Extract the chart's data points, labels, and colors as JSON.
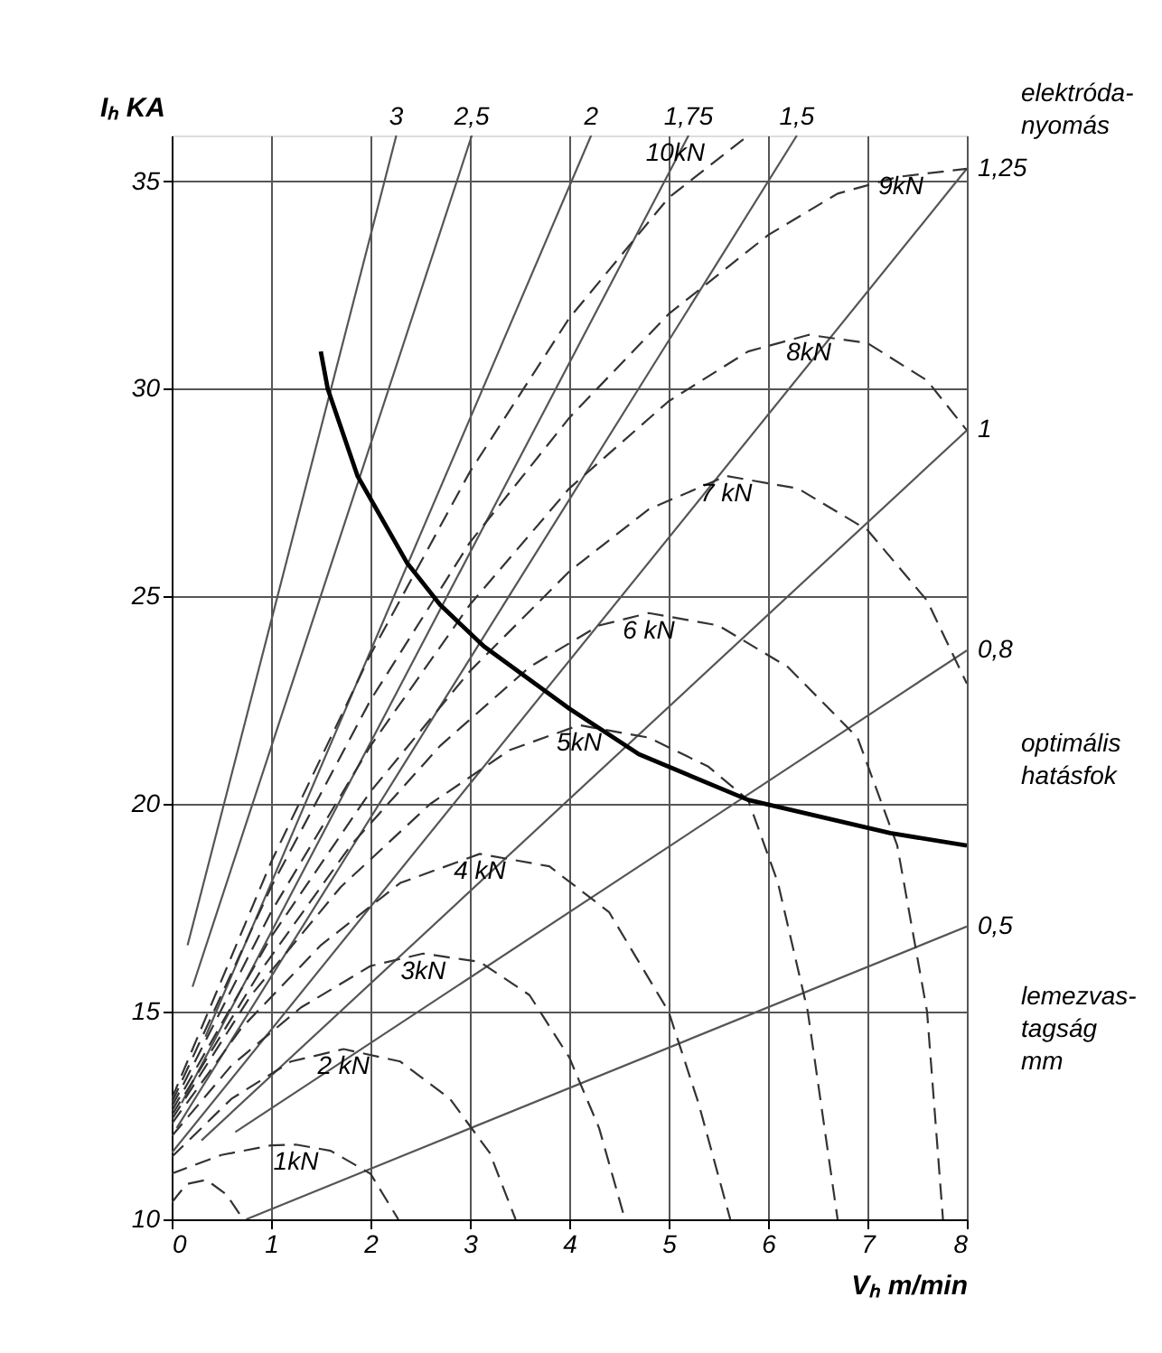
{
  "chart_data": {
    "type": "line",
    "xlabel": "Vₕ m/min",
    "ylabel": "Iₕ KA",
    "xlim": [
      0,
      8
    ],
    "ylim": [
      10,
      36.1
    ],
    "xticks": [
      0,
      1,
      2,
      3,
      4,
      5,
      6,
      7,
      8
    ],
    "yticks": [
      10,
      15,
      20,
      25,
      30,
      35
    ],
    "grid": true,
    "legend": false,
    "marker": "none",
    "annotations": [
      "elektróda-nyomás",
      "optimális hatásfok",
      "lemezvas-tagság mm"
    ],
    "series": [
      {
        "name": "3",
        "color": "#555555",
        "line_style": "solid",
        "x": [
          0.16,
          2.26
        ],
        "values": [
          16.6,
          36.1
        ]
      },
      {
        "name": "2,5",
        "color": "#555555",
        "line_style": "solid",
        "x": [
          0.21,
          3.02
        ],
        "values": [
          15.6,
          36.1
        ]
      },
      {
        "name": "2",
        "color": "#555555",
        "line_style": "solid",
        "x": [
          0.34,
          4.22
        ],
        "values": [
          14.4,
          36.1
        ]
      },
      {
        "name": "1,75",
        "color": "#555555",
        "line_style": "solid",
        "x": [
          0.1,
          5.2
        ],
        "values": [
          12.8,
          36.1
        ]
      },
      {
        "name": "1,5",
        "color": "#555555",
        "line_style": "solid",
        "x": [
          0.05,
          6.29
        ],
        "values": [
          12.2,
          36.1
        ]
      },
      {
        "name": "1,25",
        "color": "#555555",
        "line_style": "solid",
        "x": [
          0,
          8
        ],
        "values": [
          11.6,
          35.3
        ]
      },
      {
        "name": "1",
        "color": "#555555",
        "line_style": "solid",
        "x": [
          0.3,
          8
        ],
        "values": [
          11.9,
          29.0
        ]
      },
      {
        "name": "0,8",
        "color": "#555555",
        "line_style": "solid",
        "x": [
          0.64,
          8
        ],
        "values": [
          12.1,
          23.7
        ]
      },
      {
        "name": "0,5",
        "color": "#555555",
        "line_style": "solid",
        "x": [
          0.75,
          8
        ],
        "values": [
          10,
          17.05
        ]
      },
      {
        "color": "#333333",
        "line_style": "dashed",
        "x": [
          0,
          0.15,
          0.35,
          0.55,
          0.72
        ],
        "values": [
          10.4,
          10.85,
          10.95,
          10.6,
          10
        ]
      },
      {
        "name": "1kN",
        "color": "#333333",
        "line_style": "dashed",
        "x": [
          0,
          0.5,
          1.0,
          1.25,
          1.6,
          2.0,
          2.28
        ],
        "values": [
          11.1,
          11.55,
          11.78,
          11.8,
          11.65,
          11.1,
          10
        ]
      },
      {
        "name": "2 kN",
        "color": "#333333",
        "line_style": "dashed",
        "x": [
          0,
          0.6,
          1.2,
          1.73,
          2.3,
          2.8,
          3.2,
          3.46
        ],
        "values": [
          11.5,
          12.9,
          13.8,
          14.1,
          13.8,
          12.9,
          11.6,
          10
        ]
      },
      {
        "name": "3kN",
        "color": "#333333",
        "line_style": "dashed",
        "x": [
          0,
          0.6,
          1.3,
          2.0,
          2.53,
          3.1,
          3.6,
          4.0,
          4.3,
          4.56
        ],
        "values": [
          12.0,
          13.7,
          15.1,
          16.1,
          16.4,
          16.2,
          15.4,
          13.9,
          12.2,
          10
        ]
      },
      {
        "name": "4 kN",
        "color": "#333333",
        "line_style": "dashed",
        "x": [
          0,
          0.7,
          1.5,
          2.3,
          3.1,
          3.8,
          4.4,
          5.0,
          5.3,
          5.62
        ],
        "values": [
          12.3,
          14.6,
          16.6,
          18.1,
          18.8,
          18.5,
          17.4,
          15.0,
          12.8,
          10
        ]
      },
      {
        "name": "5kN",
        "color": "#333333",
        "line_style": "dashed",
        "x": [
          0,
          0.8,
          1.7,
          2.6,
          3.4,
          4.1,
          4.8,
          5.4,
          5.8,
          6.1,
          6.4,
          6.7
        ],
        "values": [
          12.4,
          15.4,
          18.0,
          20.0,
          21.3,
          21.9,
          21.6,
          20.9,
          20.1,
          18.1,
          15.0,
          10
        ]
      },
      {
        "name": "6 kN",
        "color": "#333333",
        "line_style": "dashed",
        "x": [
          0,
          0.9,
          1.8,
          2.7,
          3.6,
          4.3,
          4.8,
          5.5,
          6.2,
          6.9,
          7.3,
          7.6,
          7.76
        ],
        "values": [
          12.5,
          16.0,
          19.0,
          21.4,
          23.3,
          24.3,
          24.6,
          24.3,
          23.3,
          21.6,
          19.0,
          15.0,
          10
        ]
      },
      {
        "name": "7 kN",
        "color": "#333333",
        "line_style": "dashed",
        "x": [
          0,
          1.0,
          2.0,
          3.0,
          4.0,
          4.8,
          5.58,
          6.3,
          7.0,
          7.6,
          8.0
        ],
        "values": [
          12.6,
          16.8,
          20.3,
          23.2,
          25.6,
          27.1,
          27.9,
          27.6,
          26.6,
          24.9,
          22.9
        ]
      },
      {
        "name": "8kN",
        "color": "#333333",
        "line_style": "dashed",
        "x": [
          0,
          1.0,
          2.0,
          3.0,
          4.0,
          5.0,
          5.8,
          6.41,
          7.0,
          7.6,
          8.0
        ],
        "values": [
          12.7,
          17.4,
          21.4,
          24.8,
          27.6,
          29.7,
          30.9,
          31.3,
          31.1,
          30.2,
          29.0
        ]
      },
      {
        "name": "9kN",
        "color": "#333333",
        "line_style": "dashed",
        "x": [
          0,
          1.0,
          2.0,
          3.0,
          4.0,
          5.0,
          6.0,
          6.7,
          7.3,
          8.0
        ],
        "values": [
          12.8,
          18.0,
          22.5,
          26.3,
          29.3,
          31.8,
          33.7,
          34.7,
          35.1,
          35.3
        ]
      },
      {
        "name": "10kN",
        "color": "#333333",
        "line_style": "dashed",
        "x": [
          0,
          1.0,
          2.0,
          3.0,
          4.0,
          5.0,
          5.8
        ],
        "values": [
          12.9,
          18.6,
          23.6,
          28.0,
          31.7,
          34.6,
          36.1
        ]
      },
      {
        "color": "#000000",
        "line_style": "solid",
        "x": [
          1.5,
          1.57,
          1.87,
          2.37,
          2.7,
          3.14,
          4.0,
          4.7,
          5.8,
          7.23,
          8.0
        ],
        "values": [
          30.9,
          30.0,
          27.9,
          25.8,
          24.8,
          23.8,
          22.3,
          21.2,
          20.1,
          19.3,
          19.0
        ]
      }
    ]
  }
}
